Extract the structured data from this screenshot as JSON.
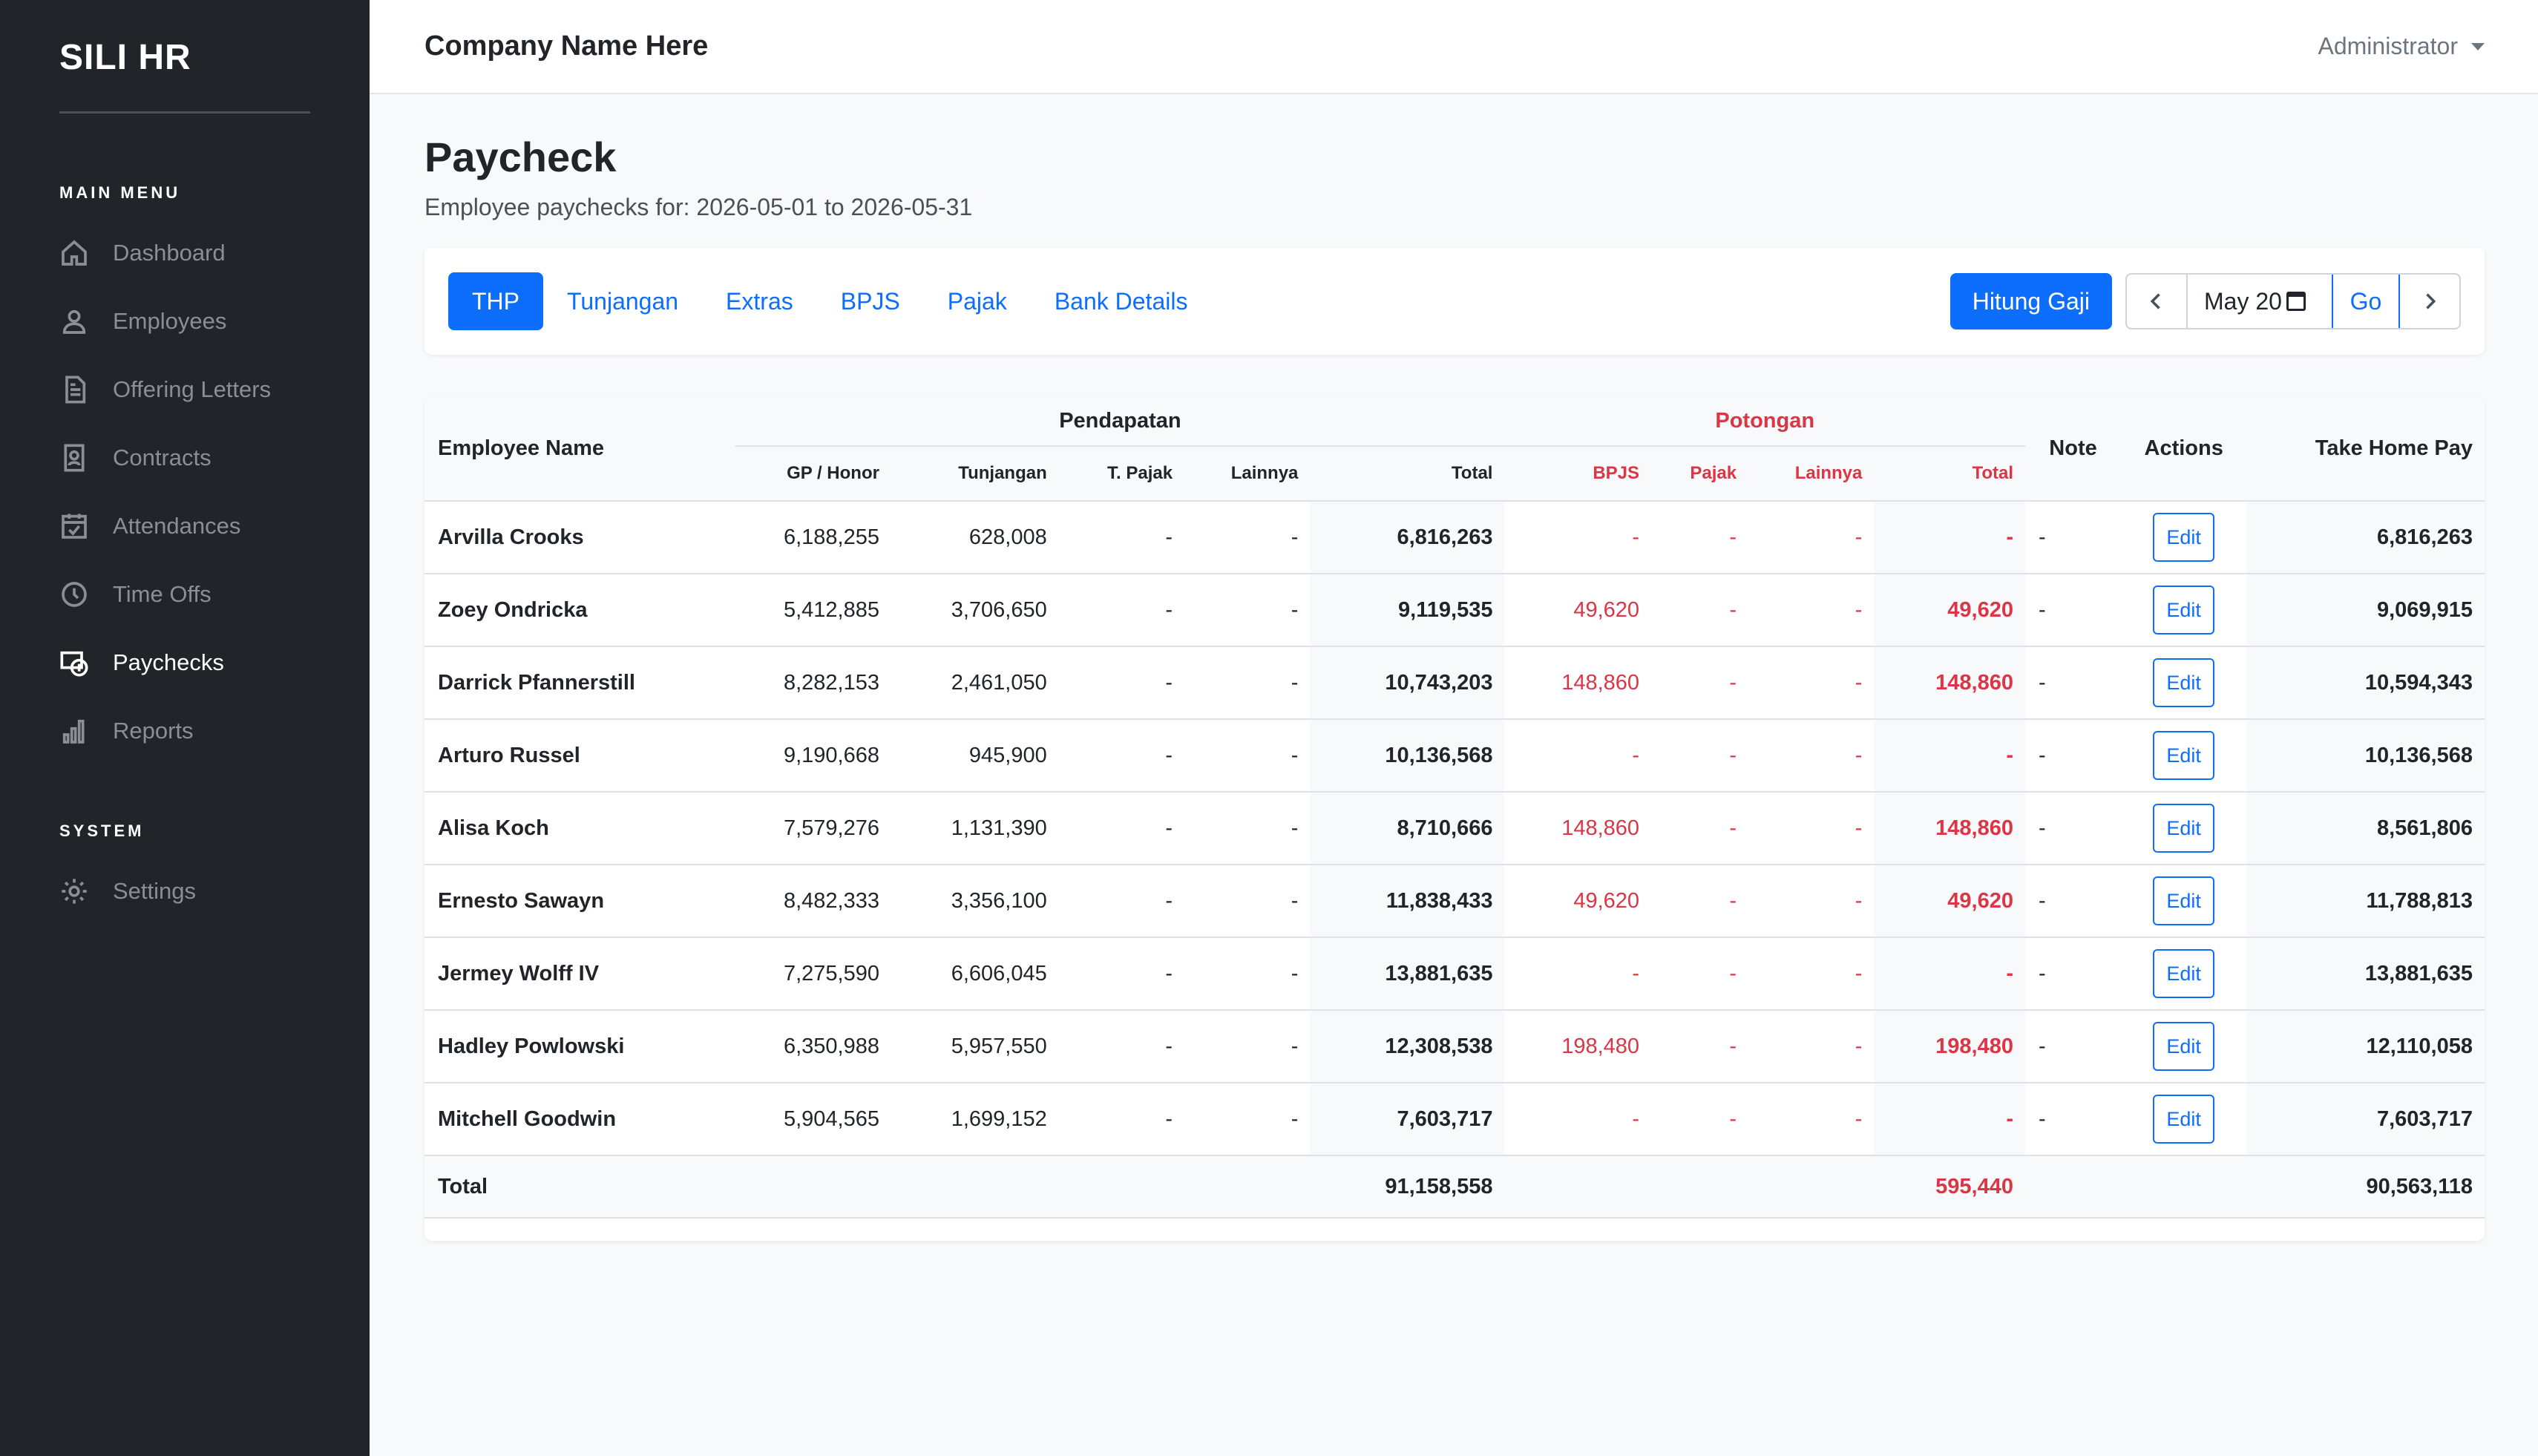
{
  "sidebar": {
    "brand": "SILI HR",
    "main_menu_title": "MAIN MENU",
    "system_title": "SYSTEM",
    "items": [
      {
        "label": "Dashboard",
        "icon": "home-icon",
        "active": false
      },
      {
        "label": "Employees",
        "icon": "person-icon",
        "active": false
      },
      {
        "label": "Offering Letters",
        "icon": "document-icon",
        "active": false
      },
      {
        "label": "Contracts",
        "icon": "contract-icon",
        "active": false
      },
      {
        "label": "Attendances",
        "icon": "calendar-check-icon",
        "active": false
      },
      {
        "label": "Time Offs",
        "icon": "clock-icon",
        "active": false
      },
      {
        "label": "Paychecks",
        "icon": "paycheck-icon",
        "active": true
      },
      {
        "label": "Reports",
        "icon": "bar-chart-icon",
        "active": false
      }
    ],
    "system_items": [
      {
        "label": "Settings",
        "icon": "gear-icon"
      }
    ]
  },
  "header": {
    "company": "Company Name Here",
    "user": "Administrator"
  },
  "page": {
    "title": "Paycheck",
    "subtitle": "Employee paychecks for: 2026-05-01 to 2026-05-31"
  },
  "toolbar": {
    "tabs": [
      "THP",
      "Tunjangan",
      "Extras",
      "BPJS",
      "Pajak",
      "Bank Details"
    ],
    "active_tab": "THP",
    "calculate_label": "Hitung Gaji",
    "month_value": "May 20",
    "go_label": "Go"
  },
  "table": {
    "group_headers": {
      "employee_name": "Employee Name",
      "pendapatan": "Pendapatan",
      "potongan": "Potongan",
      "note": "Note",
      "actions": "Actions",
      "take_home_pay": "Take Home Pay"
    },
    "sub_headers": {
      "gp_honor": "GP / Honor",
      "tunjangan": "Tunjangan",
      "t_pajak": "T. Pajak",
      "lainnya": "Lainnya",
      "total": "Total",
      "bpjs": "BPJS",
      "pajak": "Pajak",
      "lainnya2": "Lainnya",
      "total2": "Total"
    },
    "edit_label": "Edit",
    "rows": [
      {
        "name": "Arvilla Crooks",
        "gp": "6,188,255",
        "tunjangan": "628,008",
        "tpajak": "-",
        "lainnya": "-",
        "total": "6,816,263",
        "bpjs": "-",
        "pajak": "-",
        "lainnya_pot": "-",
        "total_pot": "-",
        "note": "-",
        "thp": "6,816,263"
      },
      {
        "name": "Zoey Ondricka",
        "gp": "5,412,885",
        "tunjangan": "3,706,650",
        "tpajak": "-",
        "lainnya": "-",
        "total": "9,119,535",
        "bpjs": "49,620",
        "pajak": "-",
        "lainnya_pot": "-",
        "total_pot": "49,620",
        "note": "-",
        "thp": "9,069,915"
      },
      {
        "name": "Darrick Pfannerstill",
        "gp": "8,282,153",
        "tunjangan": "2,461,050",
        "tpajak": "-",
        "lainnya": "-",
        "total": "10,743,203",
        "bpjs": "148,860",
        "pajak": "-",
        "lainnya_pot": "-",
        "total_pot": "148,860",
        "note": "-",
        "thp": "10,594,343"
      },
      {
        "name": "Arturo Russel",
        "gp": "9,190,668",
        "tunjangan": "945,900",
        "tpajak": "-",
        "lainnya": "-",
        "total": "10,136,568",
        "bpjs": "-",
        "pajak": "-",
        "lainnya_pot": "-",
        "total_pot": "-",
        "note": "-",
        "thp": "10,136,568"
      },
      {
        "name": "Alisa Koch",
        "gp": "7,579,276",
        "tunjangan": "1,131,390",
        "tpajak": "-",
        "lainnya": "-",
        "total": "8,710,666",
        "bpjs": "148,860",
        "pajak": "-",
        "lainnya_pot": "-",
        "total_pot": "148,860",
        "note": "-",
        "thp": "8,561,806"
      },
      {
        "name": "Ernesto Sawayn",
        "gp": "8,482,333",
        "tunjangan": "3,356,100",
        "tpajak": "-",
        "lainnya": "-",
        "total": "11,838,433",
        "bpjs": "49,620",
        "pajak": "-",
        "lainnya_pot": "-",
        "total_pot": "49,620",
        "note": "-",
        "thp": "11,788,813"
      },
      {
        "name": "Jermey Wolff IV",
        "gp": "7,275,590",
        "tunjangan": "6,606,045",
        "tpajak": "-",
        "lainnya": "-",
        "total": "13,881,635",
        "bpjs": "-",
        "pajak": "-",
        "lainnya_pot": "-",
        "total_pot": "-",
        "note": "-",
        "thp": "13,881,635"
      },
      {
        "name": "Hadley Powlowski",
        "gp": "6,350,988",
        "tunjangan": "5,957,550",
        "tpajak": "-",
        "lainnya": "-",
        "total": "12,308,538",
        "bpjs": "198,480",
        "pajak": "-",
        "lainnya_pot": "-",
        "total_pot": "198,480",
        "note": "-",
        "thp": "12,110,058"
      },
      {
        "name": "Mitchell Goodwin",
        "gp": "5,904,565",
        "tunjangan": "1,699,152",
        "tpajak": "-",
        "lainnya": "-",
        "total": "7,603,717",
        "bpjs": "-",
        "pajak": "-",
        "lainnya_pot": "-",
        "total_pot": "-",
        "note": "-",
        "thp": "7,603,717"
      }
    ],
    "footer": {
      "label": "Total",
      "total_pendapatan": "91,158,558",
      "total_potongan": "595,440",
      "total_thp": "90,563,118"
    }
  },
  "colors": {
    "sidebar_bg": "#212529",
    "primary": "#0d6efd",
    "danger": "#dc3545"
  }
}
